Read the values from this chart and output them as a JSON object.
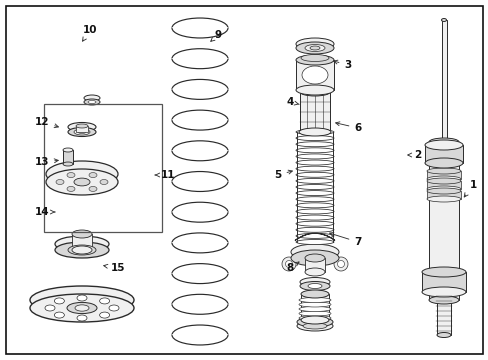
{
  "bg_color": "#ffffff",
  "line_color": "#2a2a2a",
  "fill_light": "#f0f0f0",
  "fill_mid": "#d8d8d8",
  "fill_dark": "#b8b8b8",
  "figsize": [
    4.89,
    3.6
  ],
  "dpi": 100,
  "labels": [
    [
      "1",
      473,
      175,
      462,
      160
    ],
    [
      "2",
      418,
      205,
      404,
      205
    ],
    [
      "3",
      348,
      295,
      330,
      300
    ],
    [
      "4",
      290,
      258,
      302,
      255
    ],
    [
      "5",
      278,
      185,
      296,
      190
    ],
    [
      "6",
      358,
      232,
      332,
      238
    ],
    [
      "7",
      358,
      118,
      326,
      128
    ],
    [
      "8",
      290,
      92,
      302,
      100
    ],
    [
      "9",
      218,
      325,
      210,
      318
    ],
    [
      "10",
      90,
      330,
      82,
      318
    ],
    [
      "11",
      168,
      185,
      152,
      185
    ],
    [
      "12",
      42,
      238,
      62,
      232
    ],
    [
      "13",
      42,
      198,
      62,
      200
    ],
    [
      "14",
      42,
      148,
      58,
      148
    ],
    [
      "15",
      118,
      92,
      100,
      95
    ]
  ]
}
